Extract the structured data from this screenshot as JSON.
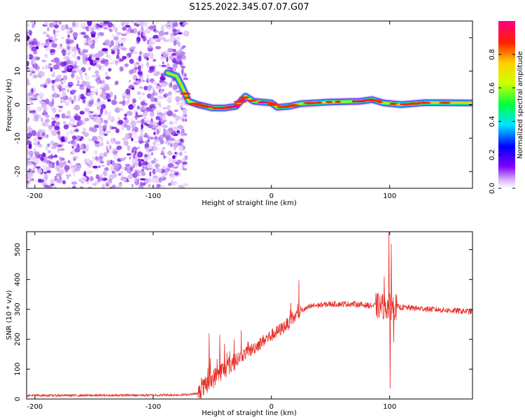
{
  "title": "S125.2022.345.07.07.G07",
  "chart_data": [
    {
      "type": "heatmap",
      "xlabel": "Height of straight line (km)",
      "ylabel": "Frequency (Hz)",
      "xlim": [
        -207,
        170
      ],
      "ylim": [
        -25,
        25
      ],
      "x_ticks": [
        -200,
        -100,
        0,
        100
      ],
      "y_ticks": [
        -20,
        -10,
        0,
        10,
        20
      ],
      "colorbar": {
        "label": "Normalized spectral amplitude",
        "range": [
          0,
          1
        ],
        "ticks": [
          "0.0",
          "0.2",
          "0.4",
          "0.6",
          "0.8"
        ]
      },
      "noise_region_x": [
        -207,
        -72
      ],
      "ridge": [
        {
          "x": -88,
          "y": 9.5
        },
        {
          "x": -80,
          "y": 8.5
        },
        {
          "x": -75,
          "y": 5
        },
        {
          "x": -70,
          "y": 1
        },
        {
          "x": -62,
          "y": 0
        },
        {
          "x": -50,
          "y": -1
        },
        {
          "x": -40,
          "y": -1
        },
        {
          "x": -30,
          "y": -0.5
        },
        {
          "x": -22,
          "y": 2.5
        },
        {
          "x": -15,
          "y": 1
        },
        {
          "x": 0,
          "y": 0.5
        },
        {
          "x": 5,
          "y": -0.8
        },
        {
          "x": 15,
          "y": -0.5
        },
        {
          "x": 25,
          "y": 0.3
        },
        {
          "x": 50,
          "y": 0.8
        },
        {
          "x": 75,
          "y": 1
        },
        {
          "x": 85,
          "y": 1.5
        },
        {
          "x": 95,
          "y": 0.5
        },
        {
          "x": 110,
          "y": 0
        },
        {
          "x": 130,
          "y": 0.6
        },
        {
          "x": 170,
          "y": 0.5
        }
      ]
    },
    {
      "type": "line",
      "xlabel": "Height of straight line (km)",
      "ylabel": "SNR (10 * v/v)",
      "xlim": [
        -207,
        170
      ],
      "ylim": [
        0,
        560
      ],
      "x_ticks": [
        -200,
        -100,
        0,
        100
      ],
      "y_ticks": [
        0,
        100,
        200,
        300,
        400,
        500
      ],
      "series": [
        {
          "color": "#e8302a",
          "points": [
            [
              -207,
              12
            ],
            [
              -150,
              12
            ],
            [
              -100,
              13
            ],
            [
              -75,
              14
            ],
            [
              -62,
              18
            ],
            [
              -55,
              45
            ],
            [
              -45,
              85
            ],
            [
              -35,
              115
            ],
            [
              -25,
              145
            ],
            [
              -15,
              170
            ],
            [
              -5,
              200
            ],
            [
              5,
              225
            ],
            [
              15,
              255
            ],
            [
              25,
              295
            ],
            [
              35,
              312
            ],
            [
              50,
              318
            ],
            [
              70,
              318
            ],
            [
              85,
              312
            ],
            [
              95,
              310
            ],
            [
              105,
              308
            ],
            [
              125,
              303
            ],
            [
              145,
              298
            ],
            [
              170,
              292
            ]
          ],
          "spikes": [
            {
              "x": -53,
              "y": 220
            },
            {
              "x": -44,
              "y": 215
            },
            {
              "x": -40,
              "y": 185
            },
            {
              "x": 95,
              "y": 410
            },
            {
              "x": 99,
              "y": 560
            },
            {
              "x": 100,
              "y": 35
            },
            {
              "x": 101,
              "y": 520
            },
            {
              "x": 103,
              "y": 190
            }
          ]
        }
      ]
    }
  ]
}
